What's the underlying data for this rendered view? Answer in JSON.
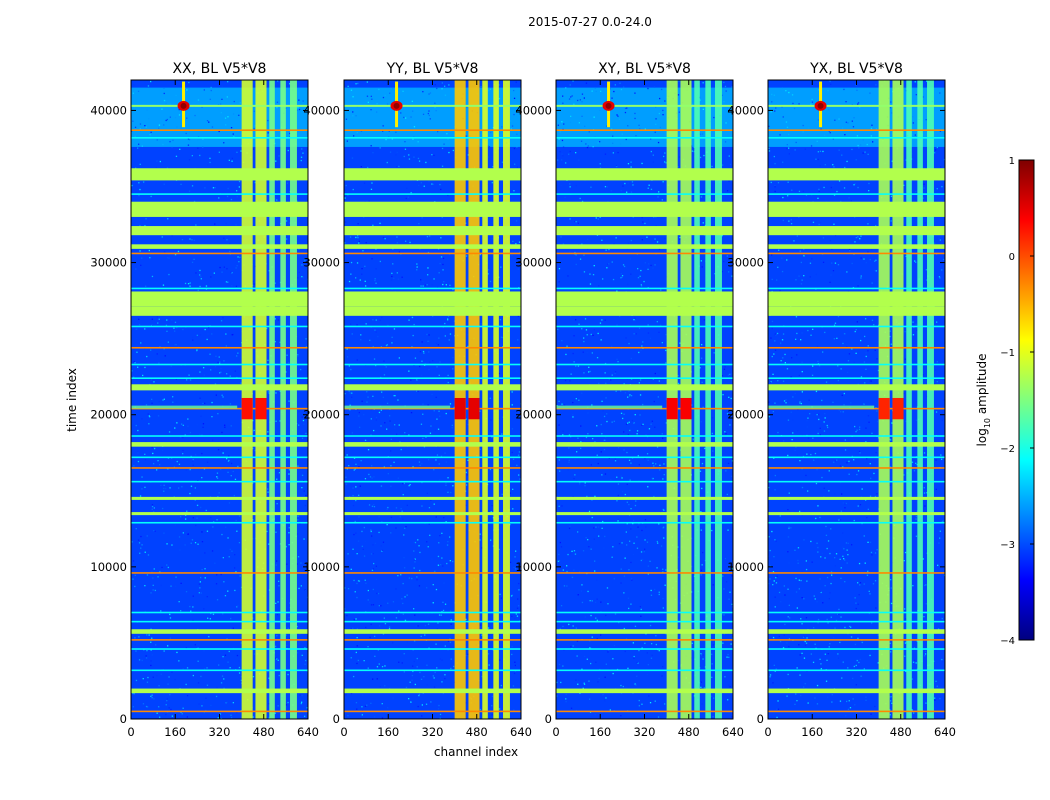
{
  "figure": {
    "suptitle": "2015-07-27 0.0-24.0"
  },
  "chart_data": {
    "type": "heatmap",
    "xlabel": "channel index",
    "ylabel": "time index",
    "x_range": [
      0,
      640
    ],
    "y_range": [
      0,
      42000
    ],
    "x_ticks": [
      0,
      160,
      320,
      480,
      640
    ],
    "y_ticks": [
      0,
      10000,
      20000,
      30000,
      40000
    ],
    "colorbar": {
      "label": "log10 amplitude",
      "label_parts": [
        "log",
        "10",
        " amplitude"
      ],
      "range": [
        -4,
        1
      ],
      "ticks": [
        1,
        0,
        -1,
        -2,
        -3,
        -4
      ],
      "tick_labels": [
        "1",
        "0",
        "−1",
        "−2",
        "−3",
        "−4"
      ],
      "colormap": "jet",
      "colormap_stops": [
        "#00007f",
        "#0000ff",
        "#007fff",
        "#00ffff",
        "#7fff7f",
        "#ffff00",
        "#ff7f00",
        "#ff0000",
        "#7f0000"
      ]
    },
    "panels": [
      {
        "title": "XX, BL V5*V8",
        "channel_band_level": -1.1,
        "peak_level": 0.3
      },
      {
        "title": "YY, BL V5*V8",
        "channel_band_level": -0.6,
        "peak_level": 0.5
      },
      {
        "title": "XY, BL V5*V8",
        "channel_band_level": -1.3,
        "peak_level": 0.4
      },
      {
        "title": "YX, BL V5*V8",
        "channel_band_level": -1.3,
        "peak_level": 0.2
      }
    ],
    "flagged_rows": [
      [
        35400,
        36200
      ],
      [
        33000,
        34000
      ],
      [
        31800,
        32400
      ],
      [
        30900,
        31200
      ],
      [
        27100,
        28100
      ],
      [
        26500,
        27100
      ],
      [
        21600,
        22000
      ],
      [
        17900,
        18200
      ],
      [
        14400,
        14600
      ],
      [
        13400,
        13600
      ],
      [
        5600,
        5900
      ],
      [
        1700,
        2000
      ]
    ],
    "rfi_rows": [
      38700,
      38200,
      34500,
      30600,
      28300,
      25800,
      24400,
      23300,
      22400,
      20400,
      18600,
      17200,
      16500,
      15600,
      12900,
      9600,
      7000,
      6400,
      5200,
      4600,
      3200,
      500
    ],
    "channel_bands": [
      [
        400,
        440
      ],
      [
        450,
        490
      ],
      [
        500,
        520
      ],
      [
        540,
        560
      ],
      [
        575,
        600
      ]
    ],
    "hot_spot_time": 20500
  }
}
